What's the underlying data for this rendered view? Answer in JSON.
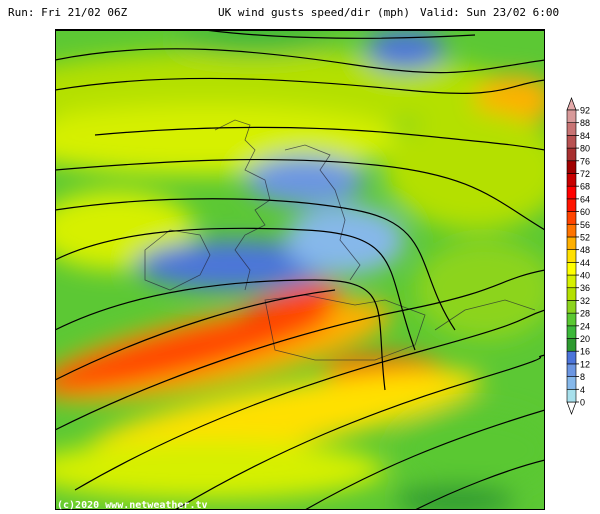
{
  "header": {
    "run": "Run: Fri 21/02 06Z",
    "title": "UK wind gusts speed/dir (mph)",
    "valid": "Valid: Sun 23/02 6:00"
  },
  "copyright": "(c)2020  www.netweather.tv",
  "legend": {
    "unit": "mph",
    "ticks": [
      "0",
      "4",
      "8",
      "12",
      "16",
      "20",
      "24",
      "28",
      "32",
      "36",
      "40",
      "44",
      "48",
      "52",
      "56",
      "60",
      "64",
      "68",
      "72",
      "76",
      "80",
      "84",
      "88",
      "92"
    ],
    "colors": [
      "#a8e0ec",
      "#86b8ea",
      "#6c96e2",
      "#4c74da",
      "#2e9a30",
      "#3cb83a",
      "#5ac832",
      "#8cd41e",
      "#b4e000",
      "#d6f000",
      "#ffff00",
      "#ffe000",
      "#ffb000",
      "#ff7400",
      "#ff4400",
      "#ff1400",
      "#ff0000",
      "#c80000",
      "#a00000",
      "#a83030",
      "#b85252",
      "#c87474",
      "#d89a9a"
    ],
    "top_arrow_color": "#e4aaaa",
    "bottom_arrow_color": "#ffffff"
  }
}
